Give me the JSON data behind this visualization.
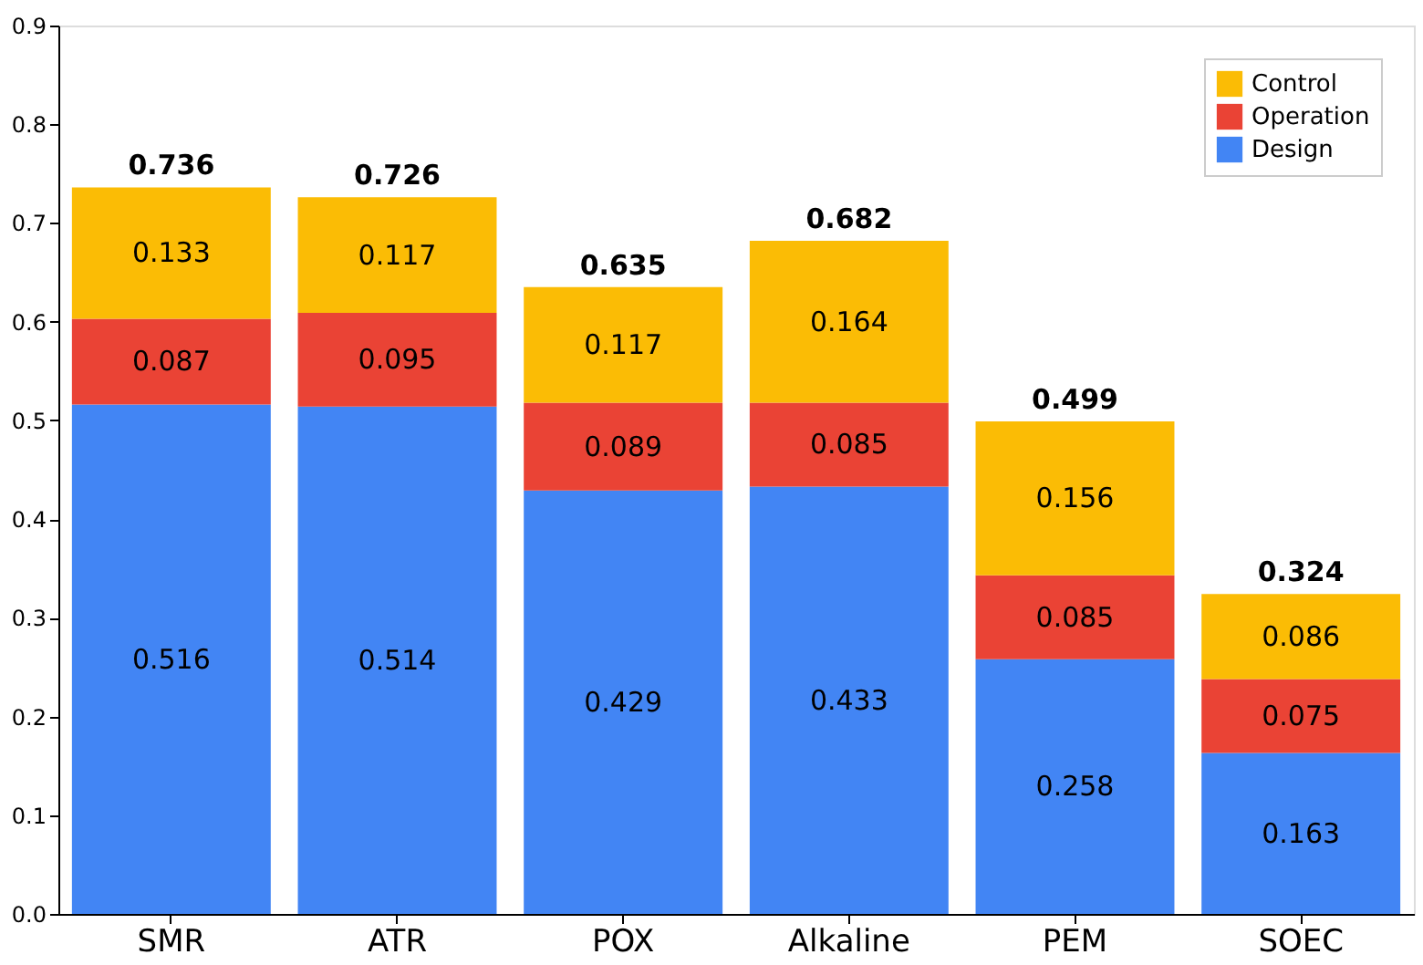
{
  "chart_data": {
    "type": "bar",
    "stacked": true,
    "categories": [
      "SMR",
      "ATR",
      "POX",
      "Alkaline",
      "PEM",
      "SOEC"
    ],
    "series": [
      {
        "name": "Design",
        "color": "#4285f4",
        "values": [
          0.516,
          0.514,
          0.429,
          0.433,
          0.258,
          0.163
        ]
      },
      {
        "name": "Operation",
        "color": "#ea4335",
        "values": [
          0.087,
          0.095,
          0.089,
          0.085,
          0.085,
          0.075
        ]
      },
      {
        "name": "Control",
        "color": "#fbbc05",
        "values": [
          0.133,
          0.117,
          0.117,
          0.164,
          0.156,
          0.086
        ]
      }
    ],
    "totals": [
      "0.736",
      "0.726",
      "0.635",
      "0.682",
      "0.499",
      "0.324"
    ],
    "data_labels": true,
    "ylim": [
      0,
      0.9
    ],
    "yticks": [
      {
        "value": 0,
        "label": "0.0"
      },
      0.1,
      0.2,
      0.3,
      0.4,
      0.5,
      0.6,
      0.7,
      0.8,
      0.9
    ],
    "grid": false,
    "legend": "top right"
  }
}
